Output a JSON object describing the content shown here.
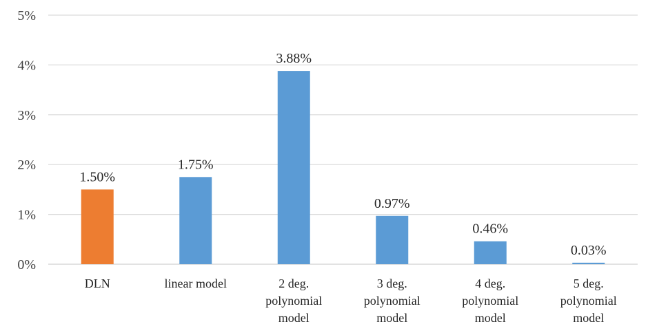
{
  "chart_data": {
    "type": "bar",
    "title": "",
    "xlabel": "",
    "ylabel": "",
    "categories": [
      [
        "DLN"
      ],
      [
        "linear model"
      ],
      [
        "2 deg.",
        "polynomial",
        "model"
      ],
      [
        "3 deg.",
        "polynomial",
        "model"
      ],
      [
        "4 deg.",
        "polynomial",
        "model"
      ],
      [
        "5 deg.",
        "polynomial",
        "model"
      ]
    ],
    "values": [
      1.5,
      1.75,
      3.88,
      0.97,
      0.46,
      0.03
    ],
    "data_labels": [
      "1.50%",
      "1.75%",
      "3.88%",
      "0.97%",
      "0.46%",
      "0.03%"
    ],
    "bar_colors": [
      "#ed7d31",
      "#5b9bd5",
      "#5b9bd5",
      "#5b9bd5",
      "#5b9bd5",
      "#5b9bd5"
    ],
    "ylim": [
      0,
      5
    ],
    "yticks": [
      0,
      1,
      2,
      3,
      4,
      5
    ],
    "ytick_labels": [
      "0%",
      "1%",
      "2%",
      "3%",
      "4%",
      "5%"
    ],
    "grid": true,
    "legend": "none"
  }
}
